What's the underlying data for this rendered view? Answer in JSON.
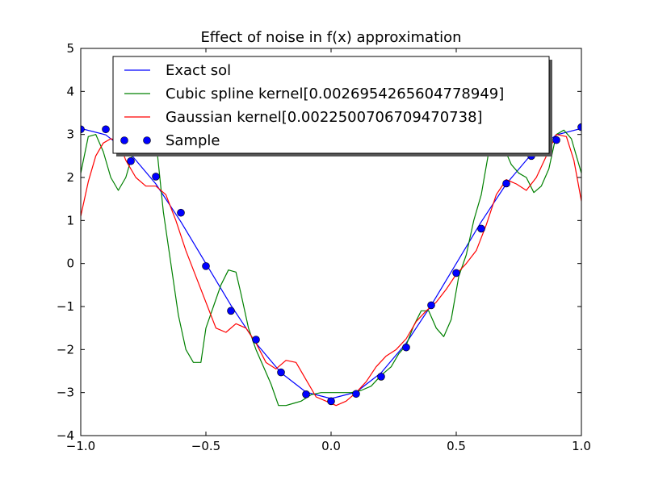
{
  "chart_data": {
    "type": "line",
    "title": "Effect of noise in f(x) approximation",
    "xlabel": "",
    "ylabel": "",
    "xlim": [
      -1.0,
      1.0
    ],
    "ylim": [
      -4,
      5
    ],
    "x_ticks": [
      -1.0,
      -0.5,
      0.0,
      0.5,
      1.0
    ],
    "x_tick_labels": [
      "−1.0",
      "−0.5",
      "0.0",
      "0.5",
      "1.0"
    ],
    "y_ticks": [
      -4,
      -3,
      -2,
      -1,
      0,
      1,
      2,
      3,
      4,
      5
    ],
    "y_tick_labels": [
      "−4",
      "−3",
      "−2",
      "−1",
      "0",
      "1",
      "2",
      "3",
      "4",
      "5"
    ],
    "grid": false,
    "legend_placement": "top-center",
    "series": [
      {
        "name": "Exact sol",
        "kind": "line",
        "color": "#0000ff",
        "x": [
          -1.0,
          -0.9,
          -0.8,
          -0.7,
          -0.6,
          -0.5,
          -0.4,
          -0.3,
          -0.2,
          -0.1,
          0.0,
          0.1,
          0.2,
          0.3,
          0.4,
          0.5,
          0.6,
          0.7,
          0.8,
          0.9,
          1.0
        ],
        "y": [
          3.14,
          2.99,
          2.54,
          1.85,
          0.97,
          0.0,
          -0.97,
          -1.85,
          -2.54,
          -2.99,
          -3.14,
          -2.99,
          -2.54,
          -1.85,
          -0.97,
          0.0,
          0.97,
          1.85,
          2.54,
          2.99,
          3.14
        ]
      },
      {
        "name": "Cubic spline kernel[0.0026954265604778949]",
        "kind": "line",
        "color": "#008000",
        "x": [
          -1.0,
          -0.97,
          -0.94,
          -0.91,
          -0.88,
          -0.85,
          -0.82,
          -0.78,
          -0.74,
          -0.7,
          -0.67,
          -0.64,
          -0.61,
          -0.58,
          -0.55,
          -0.52,
          -0.5,
          -0.47,
          -0.44,
          -0.41,
          -0.38,
          -0.36,
          -0.33,
          -0.3,
          -0.27,
          -0.24,
          -0.21,
          -0.18,
          -0.15,
          -0.12,
          -0.08,
          -0.04,
          0.0,
          0.04,
          0.08,
          0.12,
          0.16,
          0.2,
          0.24,
          0.27,
          0.3,
          0.33,
          0.36,
          0.39,
          0.42,
          0.45,
          0.48,
          0.51,
          0.54,
          0.57,
          0.6,
          0.63,
          0.66,
          0.69,
          0.72,
          0.75,
          0.78,
          0.81,
          0.84,
          0.87,
          0.9,
          0.93,
          0.96,
          1.0
        ],
        "y": [
          2.1,
          2.95,
          3.0,
          2.6,
          2.0,
          1.7,
          2.0,
          2.8,
          3.0,
          2.9,
          1.2,
          0.0,
          -1.2,
          -2.0,
          -2.3,
          -2.3,
          -1.5,
          -1.0,
          -0.5,
          -0.15,
          -0.2,
          -0.7,
          -1.5,
          -2.0,
          -2.4,
          -2.8,
          -3.3,
          -3.3,
          -3.25,
          -3.2,
          -3.05,
          -3.0,
          -3.0,
          -3.0,
          -3.0,
          -2.95,
          -2.85,
          -2.6,
          -2.4,
          -2.1,
          -1.9,
          -1.45,
          -1.1,
          -1.1,
          -1.5,
          -1.7,
          -1.3,
          -0.3,
          0.2,
          1.0,
          1.6,
          2.6,
          3.0,
          2.7,
          2.3,
          2.1,
          2.0,
          1.65,
          1.8,
          2.2,
          3.0,
          3.1,
          2.9,
          2.1
        ]
      },
      {
        "name": "Gaussian kernel[0.002250070670947073​8]",
        "kind": "line",
        "color": "#ff0000",
        "x": [
          -1.0,
          -0.97,
          -0.94,
          -0.91,
          -0.88,
          -0.85,
          -0.82,
          -0.78,
          -0.74,
          -0.7,
          -0.66,
          -0.62,
          -0.58,
          -0.54,
          -0.5,
          -0.46,
          -0.42,
          -0.38,
          -0.34,
          -0.3,
          -0.26,
          -0.22,
          -0.18,
          -0.14,
          -0.1,
          -0.06,
          -0.02,
          0.02,
          0.06,
          0.1,
          0.14,
          0.18,
          0.22,
          0.26,
          0.3,
          0.34,
          0.38,
          0.42,
          0.46,
          0.5,
          0.54,
          0.58,
          0.62,
          0.66,
          0.7,
          0.74,
          0.78,
          0.82,
          0.86,
          0.9,
          0.94,
          0.97,
          1.0
        ],
        "y": [
          1.1,
          1.9,
          2.5,
          2.8,
          2.9,
          2.85,
          2.4,
          2.0,
          1.8,
          1.8,
          1.6,
          1.0,
          0.3,
          -0.3,
          -0.9,
          -1.5,
          -1.6,
          -1.4,
          -1.5,
          -1.85,
          -2.3,
          -2.45,
          -2.25,
          -2.3,
          -2.7,
          -3.1,
          -3.2,
          -3.3,
          -3.2,
          -3.0,
          -2.75,
          -2.4,
          -2.15,
          -2.0,
          -1.75,
          -1.35,
          -1.1,
          -0.9,
          -0.6,
          -0.25,
          0.0,
          0.3,
          0.9,
          1.6,
          1.95,
          1.85,
          1.7,
          2.0,
          2.5,
          3.0,
          2.95,
          2.4,
          1.45
        ]
      },
      {
        "name": "Sample",
        "kind": "markers",
        "color": "#0000ff",
        "x": [
          -1.0,
          -0.9,
          -0.8,
          -0.7,
          -0.6,
          -0.5,
          -0.4,
          -0.3,
          -0.2,
          -0.1,
          0.0,
          0.1,
          0.2,
          0.3,
          0.4,
          0.5,
          0.6,
          0.7,
          0.8,
          0.9,
          1.0
        ],
        "y": [
          3.12,
          3.12,
          2.38,
          2.02,
          1.18,
          -0.06,
          -1.1,
          -1.77,
          -2.53,
          -3.04,
          -3.2,
          -3.03,
          -2.63,
          -1.95,
          -0.97,
          -0.22,
          0.81,
          1.86,
          2.5,
          2.87,
          3.17
        ]
      }
    ]
  }
}
